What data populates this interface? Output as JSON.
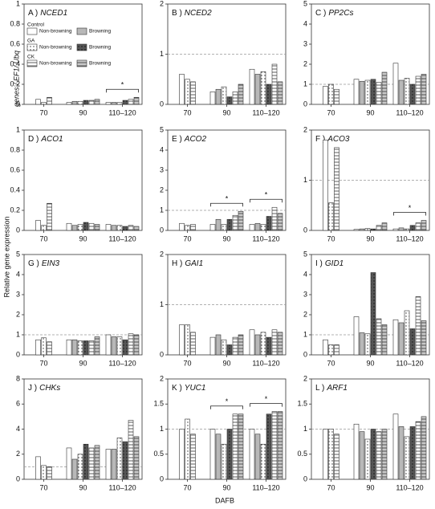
{
  "y_label": "Relative gene expression",
  "y_label_genes": "genes / EF1/ Ubq",
  "x_label": "DAFB",
  "legend": [
    {
      "group": "Control",
      "series": [
        {
          "name": "Non-browning",
          "color": "#ffffff",
          "hatch": "none"
        },
        {
          "name": "Browning",
          "color": "#b8b8b8",
          "hatch": "none"
        }
      ]
    },
    {
      "group": "GA",
      "series": [
        {
          "name": "Non-browning",
          "color": "#ffffff",
          "hatch": "dots"
        },
        {
          "name": "Browning",
          "color": "#555555",
          "hatch": "dots"
        }
      ]
    },
    {
      "group": "CK",
      "series": [
        {
          "name": "Non-browning",
          "color": "#ffffff",
          "hatch": "lines"
        },
        {
          "name": "Browning",
          "color": "#c8c8c8",
          "hatch": "lines"
        }
      ]
    }
  ],
  "chart_data": [
    {
      "type": "bar",
      "panel": "A )",
      "gene": "NCED1",
      "categories": [
        "70",
        "90",
        "110–120"
      ],
      "ylim": [
        0,
        1
      ],
      "yticks": [
        0,
        0.2,
        0.4,
        0.6,
        0.8,
        1
      ],
      "values": [
        [
          0.05,
          0.02,
          0.02
        ],
        [
          null,
          0.03,
          0.02
        ],
        [
          0.02,
          0.03,
          0.02
        ],
        [
          null,
          0.04,
          0.04
        ],
        [
          0.07,
          0.04,
          0.05
        ],
        [
          null,
          0.05,
          0.07
        ]
      ],
      "annotations": [
        {
          "text": "*",
          "category": "110–120"
        }
      ]
    },
    {
      "type": "bar",
      "panel": "B )",
      "gene": "NCED2",
      "categories": [
        "70",
        "90",
        "110–120"
      ],
      "ylim": [
        0,
        2
      ],
      "yticks": [
        0,
        1,
        2
      ],
      "refline": 1,
      "values": [
        [
          0.6,
          0.25,
          0.7
        ],
        [
          null,
          0.3,
          0.6
        ],
        [
          0.5,
          0.35,
          0.65
        ],
        [
          null,
          0.15,
          0.4
        ],
        [
          0.45,
          0.25,
          0.8
        ],
        [
          null,
          0.4,
          0.45
        ]
      ]
    },
    {
      "type": "bar",
      "panel": "C )",
      "gene": "PP2Cs",
      "categories": [
        "70",
        "90",
        "110–120"
      ],
      "ylim": [
        0,
        5
      ],
      "yticks": [
        0,
        1,
        2,
        3,
        4,
        5
      ],
      "refline": 1,
      "values": [
        [
          0.9,
          1.25,
          2.05
        ],
        [
          null,
          1.15,
          1.2
        ],
        [
          1,
          1.2,
          1.3
        ],
        [
          null,
          1.25,
          1
        ],
        [
          0.75,
          1.1,
          1.4
        ],
        [
          null,
          1.6,
          1.5
        ]
      ]
    },
    {
      "type": "bar",
      "panel": "D )",
      "gene": "ACO1",
      "categories": [
        "70",
        "90",
        "110–120"
      ],
      "ylim": [
        0,
        1
      ],
      "yticks": [
        0,
        0.2,
        0.4,
        0.6,
        0.8,
        1
      ],
      "values": [
        [
          0.1,
          0.07,
          0.06
        ],
        [
          null,
          0.05,
          0.05
        ],
        [
          0.05,
          0.06,
          0.05
        ],
        [
          null,
          0.08,
          0.04
        ],
        [
          0.27,
          0.07,
          0.05
        ],
        [
          null,
          0.06,
          0.04
        ]
      ]
    },
    {
      "type": "bar",
      "panel": "E )",
      "gene": "ACO2",
      "categories": [
        "70",
        "90",
        "110–120"
      ],
      "ylim": [
        0,
        5
      ],
      "yticks": [
        0,
        1,
        2,
        3,
        4,
        5
      ],
      "refline": 1,
      "values": [
        [
          0.35,
          0.3,
          0.3
        ],
        [
          null,
          0.55,
          0.35
        ],
        [
          0.25,
          0.3,
          0.3
        ],
        [
          null,
          0.55,
          0.7
        ],
        [
          0.3,
          0.75,
          1.15
        ],
        [
          null,
          0.95,
          0.85
        ]
      ],
      "annotations": [
        {
          "text": "*",
          "category": "90"
        },
        {
          "text": "*",
          "category": "110–120"
        }
      ]
    },
    {
      "type": "bar",
      "panel": "F )",
      "gene": "ACO3",
      "categories": [
        "70",
        "90",
        "110–120"
      ],
      "ylim": [
        0,
        2
      ],
      "yticks": [
        0,
        1,
        2
      ],
      "refline": 1,
      "values": [
        [
          1.8,
          0.02,
          0.03
        ],
        [
          null,
          0.03,
          0.05
        ],
        [
          0.55,
          0.04,
          0.03
        ],
        [
          null,
          0.03,
          0.1
        ],
        [
          1.65,
          0.1,
          0.15
        ],
        [
          null,
          0.15,
          0.2
        ]
      ],
      "annotations": [
        {
          "text": "*",
          "category": "110–120"
        }
      ]
    },
    {
      "type": "bar",
      "panel": "G )",
      "gene": "EIN3",
      "categories": [
        "70",
        "90",
        "110–120"
      ],
      "ylim": [
        0,
        5
      ],
      "yticks": [
        0,
        1,
        2,
        3,
        4,
        5
      ],
      "refline": 1,
      "values": [
        [
          0.75,
          0.75,
          1
        ],
        [
          null,
          0.75,
          0.9
        ],
        [
          0.85,
          0.7,
          0.9
        ],
        [
          null,
          0.7,
          0.75
        ],
        [
          0.65,
          0.7,
          1.05
        ],
        [
          null,
          0.9,
          1
        ]
      ]
    },
    {
      "type": "bar",
      "panel": "H )",
      "gene": "GAI1",
      "categories": [
        "70",
        "90",
        "110–120"
      ],
      "ylim": [
        0,
        2
      ],
      "yticks": [
        0,
        1,
        2
      ],
      "refline": 1,
      "values": [
        [
          0.6,
          0.35,
          0.5
        ],
        [
          null,
          0.4,
          0.4
        ],
        [
          0.6,
          0.3,
          0.45
        ],
        [
          null,
          0.2,
          0.35
        ],
        [
          0.45,
          0.35,
          0.5
        ],
        [
          null,
          0.4,
          0.45
        ]
      ]
    },
    {
      "type": "bar",
      "panel": "I )",
      "gene": "GID1",
      "categories": [
        "70",
        "90",
        "110–120"
      ],
      "ylim": [
        0,
        5
      ],
      "yticks": [
        0,
        1,
        2,
        3,
        4,
        5
      ],
      "refline": 1,
      "values": [
        [
          0.75,
          1.9,
          1.75
        ],
        [
          null,
          1.1,
          1.6
        ],
        [
          0.5,
          1.05,
          2.2
        ],
        [
          null,
          4.1,
          1.3
        ],
        [
          0.5,
          1.8,
          2.9
        ],
        [
          null,
          1.5,
          1.7
        ]
      ]
    },
    {
      "type": "bar",
      "panel": "J )",
      "gene": "CHKs",
      "categories": [
        "70",
        "90",
        "110–120"
      ],
      "ylim": [
        0,
        8
      ],
      "yticks": [
        0,
        2,
        4,
        6,
        8
      ],
      "refline": 1,
      "values": [
        [
          1.8,
          2.5,
          2.4
        ],
        [
          null,
          1.6,
          2.4
        ],
        [
          1.1,
          2,
          3.3
        ],
        [
          null,
          2.8,
          3
        ],
        [
          1,
          2.5,
          4.7
        ],
        [
          null,
          2.7,
          3.4
        ]
      ]
    },
    {
      "type": "bar",
      "panel": "K )",
      "gene": "YUC1",
      "categories": [
        "70",
        "90",
        "110–120"
      ],
      "ylim": [
        0,
        2
      ],
      "yticks": [
        0,
        0.5,
        1,
        1.5,
        2
      ],
      "refline": 1,
      "values": [
        [
          1,
          1,
          1
        ],
        [
          null,
          0.9,
          0.9
        ],
        [
          1.2,
          0.7,
          0.7
        ],
        [
          null,
          1,
          1.3
        ],
        [
          0.9,
          1.3,
          1.35
        ],
        [
          null,
          1.3,
          1.35
        ]
      ],
      "annotations": [
        {
          "text": "*",
          "category": "90"
        },
        {
          "text": "*",
          "category": "110–120"
        }
      ]
    },
    {
      "type": "bar",
      "panel": "L )",
      "gene": "ARF1",
      "categories": [
        "70",
        "90",
        "110–120"
      ],
      "ylim": [
        0,
        2
      ],
      "yticks": [
        0,
        0.5,
        1,
        1.5,
        2
      ],
      "refline": 1,
      "values": [
        [
          1,
          1.1,
          1.3
        ],
        [
          null,
          0.95,
          1.05
        ],
        [
          1,
          0.8,
          0.85
        ],
        [
          null,
          1,
          1.05
        ],
        [
          0.9,
          0.95,
          1.15
        ],
        [
          null,
          1,
          1.25
        ]
      ]
    }
  ]
}
